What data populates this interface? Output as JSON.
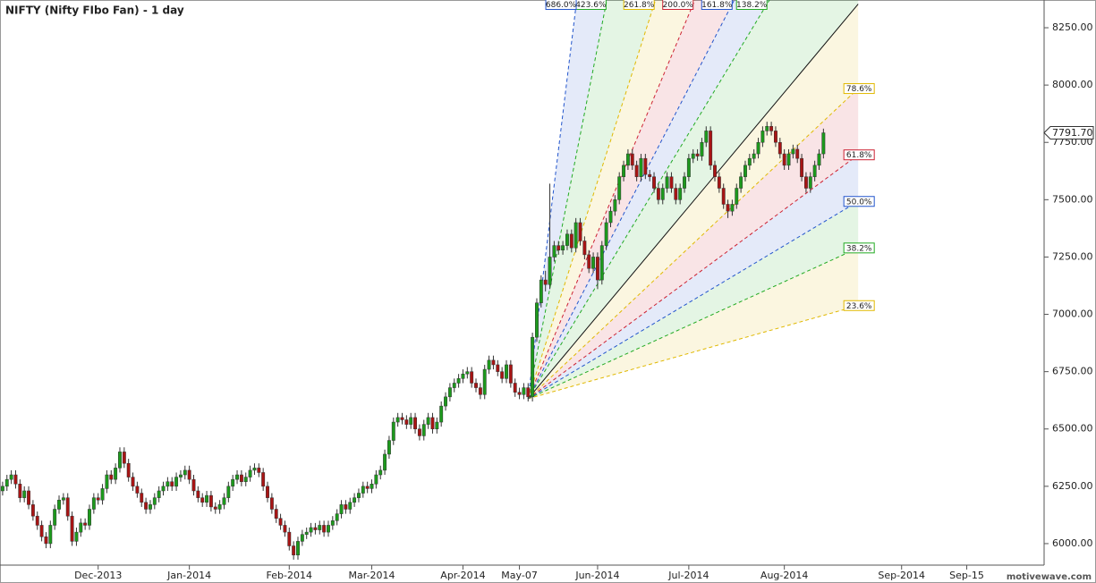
{
  "chart_data": {
    "type": "candlestick",
    "title": "NIFTY (Nifty FIbo Fan) - 1 day",
    "watermark": "motivewave.com",
    "last_price": 7791.7,
    "last_price_label": "7791.70",
    "up_color": "#1c9a1c",
    "down_color": "#a81414",
    "xlim": [
      -0.6,
      239.4
    ],
    "ylim": [
      5914,
      8371
    ],
    "xticks": [
      {
        "value": 22,
        "label": "Dec-2013"
      },
      {
        "value": 43,
        "label": "Jan-2014"
      },
      {
        "value": 66,
        "label": "Feb-2014"
      },
      {
        "value": 85,
        "label": "Mar-2014"
      },
      {
        "value": 106,
        "label": "Apr-2014"
      },
      {
        "value": 119,
        "label": "May-07"
      },
      {
        "value": 137,
        "label": "Jun-2014"
      },
      {
        "value": 158,
        "label": "Jul-2014"
      },
      {
        "value": 180,
        "label": "Aug-2014"
      },
      {
        "value": 207,
        "label": "Sep-2014"
      },
      {
        "value": 222,
        "label": "Sep-15"
      }
    ],
    "yticks": [
      {
        "value": 6000,
        "label": "6000.00"
      },
      {
        "value": 6250,
        "label": "6250.00"
      },
      {
        "value": 6500,
        "label": "6500.00"
      },
      {
        "value": 6750,
        "label": "6750.00"
      },
      {
        "value": 7000,
        "label": "7000.00"
      },
      {
        "value": 7250,
        "label": "7250.00"
      },
      {
        "value": 7500,
        "label": "7500.00"
      },
      {
        "value": 7750,
        "label": "7750.00"
      },
      {
        "value": 8000,
        "label": "8000.00"
      },
      {
        "value": 8250,
        "label": "8250.00"
      }
    ],
    "fan": {
      "origin_x": 121,
      "origin_price": 6632,
      "end_x": 197,
      "high_price": 8353,
      "levels": [
        {
          "value": 23.6,
          "label": "23.6%",
          "color": "#e0b800"
        },
        {
          "value": 38.2,
          "label": "38.2%",
          "color": "#22aa22"
        },
        {
          "value": 50,
          "label": "50.0%",
          "color": "#2255cc"
        },
        {
          "value": 61.8,
          "label": "61.8%",
          "color": "#cc2233"
        },
        {
          "value": 78.6,
          "label": "78.6%",
          "color": "#e0b800"
        },
        {
          "value": 100,
          "color": "#111111"
        },
        {
          "value": 138.2,
          "label": "138.2%",
          "color": "#22aa22"
        },
        {
          "value": 161.8,
          "label": "161.8%",
          "color": "#2255cc"
        },
        {
          "value": 200,
          "label": "200.0%",
          "color": "#cc2233"
        },
        {
          "value": 261.8,
          "label": "261.8%",
          "color": "#e0b800"
        },
        {
          "value": 423.6,
          "label": "423.6%",
          "color": "#22aa22"
        },
        {
          "value": 686,
          "label": "686.0%",
          "color": "#2255cc"
        }
      ]
    },
    "candles": [
      [
        6230,
        6270,
        6210,
        6250
      ],
      [
        6250,
        6300,
        6230,
        6280
      ],
      [
        6280,
        6320,
        6260,
        6300
      ],
      [
        6300,
        6320,
        6240,
        6260
      ],
      [
        6260,
        6280,
        6180,
        6200
      ],
      [
        6200,
        6250,
        6180,
        6230
      ],
      [
        6230,
        6250,
        6150,
        6170
      ],
      [
        6170,
        6190,
        6100,
        6120
      ],
      [
        6120,
        6140,
        6060,
        6080
      ],
      [
        6080,
        6100,
        6010,
        6030
      ],
      [
        6030,
        6050,
        5980,
        6000
      ],
      [
        6000,
        6100,
        5980,
        6080
      ],
      [
        6080,
        6170,
        6060,
        6150
      ],
      [
        6150,
        6210,
        6130,
        6190
      ],
      [
        6190,
        6220,
        6170,
        6200
      ],
      [
        6200,
        6220,
        6100,
        6120
      ],
      [
        6120,
        6140,
        5990,
        6010
      ],
      [
        6010,
        6070,
        5990,
        6050
      ],
      [
        6050,
        6110,
        6030,
        6090
      ],
      [
        6090,
        6110,
        6060,
        6080
      ],
      [
        6080,
        6170,
        6060,
        6150
      ],
      [
        6150,
        6220,
        6130,
        6200
      ],
      [
        6200,
        6220,
        6170,
        6190
      ],
      [
        6190,
        6260,
        6170,
        6240
      ],
      [
        6240,
        6320,
        6220,
        6300
      ],
      [
        6300,
        6320,
        6260,
        6280
      ],
      [
        6280,
        6350,
        6260,
        6330
      ],
      [
        6330,
        6420,
        6310,
        6400
      ],
      [
        6400,
        6420,
        6330,
        6350
      ],
      [
        6350,
        6370,
        6270,
        6290
      ],
      [
        6290,
        6310,
        6230,
        6250
      ],
      [
        6250,
        6270,
        6200,
        6220
      ],
      [
        6220,
        6240,
        6160,
        6180
      ],
      [
        6180,
        6200,
        6130,
        6150
      ],
      [
        6150,
        6190,
        6130,
        6170
      ],
      [
        6170,
        6220,
        6150,
        6200
      ],
      [
        6200,
        6250,
        6180,
        6230
      ],
      [
        6230,
        6270,
        6210,
        6250
      ],
      [
        6250,
        6290,
        6230,
        6270
      ],
      [
        6270,
        6290,
        6230,
        6250
      ],
      [
        6250,
        6310,
        6230,
        6290
      ],
      [
        6290,
        6320,
        6270,
        6300
      ],
      [
        6300,
        6340,
        6280,
        6320
      ],
      [
        6320,
        6340,
        6260,
        6280
      ],
      [
        6280,
        6300,
        6210,
        6230
      ],
      [
        6230,
        6250,
        6180,
        6200
      ],
      [
        6200,
        6220,
        6160,
        6180
      ],
      [
        6180,
        6230,
        6160,
        6210
      ],
      [
        6210,
        6230,
        6140,
        6160
      ],
      [
        6160,
        6180,
        6130,
        6150
      ],
      [
        6150,
        6190,
        6130,
        6170
      ],
      [
        6170,
        6220,
        6150,
        6200
      ],
      [
        6200,
        6270,
        6180,
        6250
      ],
      [
        6250,
        6300,
        6230,
        6280
      ],
      [
        6280,
        6320,
        6260,
        6300
      ],
      [
        6300,
        6320,
        6250,
        6270
      ],
      [
        6270,
        6310,
        6250,
        6290
      ],
      [
        6290,
        6340,
        6270,
        6320
      ],
      [
        6320,
        6350,
        6300,
        6330
      ],
      [
        6330,
        6350,
        6290,
        6310
      ],
      [
        6310,
        6330,
        6230,
        6250
      ],
      [
        6250,
        6270,
        6180,
        6200
      ],
      [
        6200,
        6220,
        6130,
        6150
      ],
      [
        6150,
        6170,
        6090,
        6110
      ],
      [
        6110,
        6130,
        6060,
        6080
      ],
      [
        6080,
        6100,
        6030,
        6050
      ],
      [
        6050,
        6070,
        5970,
        5990
      ],
      [
        5990,
        6010,
        5930,
        5950
      ],
      [
        5950,
        6030,
        5930,
        6010
      ],
      [
        6010,
        6060,
        5990,
        6040
      ],
      [
        6040,
        6070,
        6020,
        6050
      ],
      [
        6050,
        6090,
        6030,
        6070
      ],
      [
        6070,
        6090,
        6040,
        6060
      ],
      [
        6060,
        6100,
        6040,
        6080
      ],
      [
        6080,
        6100,
        6030,
        6050
      ],
      [
        6050,
        6100,
        6030,
        6080
      ],
      [
        6080,
        6120,
        6060,
        6100
      ],
      [
        6100,
        6150,
        6080,
        6130
      ],
      [
        6130,
        6190,
        6110,
        6170
      ],
      [
        6170,
        6190,
        6130,
        6150
      ],
      [
        6150,
        6200,
        6130,
        6180
      ],
      [
        6180,
        6220,
        6160,
        6200
      ],
      [
        6200,
        6240,
        6180,
        6220
      ],
      [
        6220,
        6270,
        6200,
        6250
      ],
      [
        6250,
        6270,
        6220,
        6240
      ],
      [
        6240,
        6280,
        6220,
        6260
      ],
      [
        6260,
        6320,
        6240,
        6300
      ],
      [
        6300,
        6340,
        6280,
        6320
      ],
      [
        6320,
        6410,
        6300,
        6390
      ],
      [
        6390,
        6470,
        6370,
        6450
      ],
      [
        6450,
        6550,
        6430,
        6530
      ],
      [
        6530,
        6570,
        6510,
        6550
      ],
      [
        6550,
        6570,
        6520,
        6540
      ],
      [
        6540,
        6560,
        6500,
        6520
      ],
      [
        6520,
        6570,
        6500,
        6550
      ],
      [
        6550,
        6570,
        6480,
        6500
      ],
      [
        6500,
        6520,
        6450,
        6470
      ],
      [
        6470,
        6540,
        6450,
        6520
      ],
      [
        6520,
        6570,
        6500,
        6550
      ],
      [
        6550,
        6570,
        6480,
        6500
      ],
      [
        6500,
        6550,
        6480,
        6530
      ],
      [
        6530,
        6620,
        6510,
        6600
      ],
      [
        6600,
        6660,
        6580,
        6640
      ],
      [
        6640,
        6700,
        6620,
        6680
      ],
      [
        6680,
        6720,
        6660,
        6700
      ],
      [
        6700,
        6740,
        6680,
        6720
      ],
      [
        6720,
        6760,
        6700,
        6740
      ],
      [
        6740,
        6770,
        6720,
        6750
      ],
      [
        6750,
        6770,
        6680,
        6700
      ],
      [
        6700,
        6720,
        6660,
        6680
      ],
      [
        6680,
        6700,
        6630,
        6650
      ],
      [
        6650,
        6780,
        6630,
        6760
      ],
      [
        6760,
        6820,
        6740,
        6800
      ],
      [
        6800,
        6820,
        6760,
        6780
      ],
      [
        6780,
        6800,
        6730,
        6750
      ],
      [
        6750,
        6770,
        6700,
        6720
      ],
      [
        6720,
        6800,
        6700,
        6780
      ],
      [
        6780,
        6800,
        6680,
        6700
      ],
      [
        6700,
        6720,
        6640,
        6660
      ],
      [
        6660,
        6680,
        6630,
        6650
      ],
      [
        6650,
        6700,
        6630,
        6680
      ],
      [
        6680,
        6700,
        6620,
        6640
      ],
      [
        6640,
        6920,
        6620,
        6900
      ],
      [
        6900,
        7070,
        6880,
        7050
      ],
      [
        7050,
        7170,
        7030,
        7150
      ],
      [
        7150,
        7190,
        7100,
        7130
      ],
      [
        7130,
        7570,
        7110,
        7250
      ],
      [
        7250,
        7320,
        7230,
        7300
      ],
      [
        7300,
        7320,
        7260,
        7280
      ],
      [
        7280,
        7320,
        7260,
        7300
      ],
      [
        7300,
        7370,
        7280,
        7350
      ],
      [
        7350,
        7370,
        7270,
        7290
      ],
      [
        7290,
        7420,
        7270,
        7400
      ],
      [
        7400,
        7420,
        7300,
        7320
      ],
      [
        7320,
        7340,
        7240,
        7260
      ],
      [
        7260,
        7280,
        7180,
        7200
      ],
      [
        7200,
        7270,
        7180,
        7250
      ],
      [
        7250,
        7270,
        7110,
        7150
      ],
      [
        7150,
        7320,
        7130,
        7300
      ],
      [
        7300,
        7420,
        7280,
        7400
      ],
      [
        7400,
        7470,
        7380,
        7450
      ],
      [
        7450,
        7520,
        7430,
        7500
      ],
      [
        7500,
        7620,
        7480,
        7600
      ],
      [
        7600,
        7670,
        7580,
        7650
      ],
      [
        7650,
        7720,
        7630,
        7700
      ],
      [
        7700,
        7720,
        7630,
        7650
      ],
      [
        7650,
        7670,
        7580,
        7600
      ],
      [
        7600,
        7700,
        7580,
        7680
      ],
      [
        7680,
        7700,
        7590,
        7610
      ],
      [
        7610,
        7630,
        7580,
        7600
      ],
      [
        7600,
        7620,
        7530,
        7550
      ],
      [
        7550,
        7570,
        7480,
        7500
      ],
      [
        7500,
        7570,
        7480,
        7550
      ],
      [
        7550,
        7620,
        7530,
        7600
      ],
      [
        7600,
        7620,
        7530,
        7550
      ],
      [
        7550,
        7570,
        7480,
        7500
      ],
      [
        7500,
        7570,
        7480,
        7550
      ],
      [
        7550,
        7620,
        7530,
        7600
      ],
      [
        7600,
        7700,
        7580,
        7680
      ],
      [
        7680,
        7720,
        7660,
        7700
      ],
      [
        7700,
        7720,
        7670,
        7690
      ],
      [
        7690,
        7770,
        7670,
        7750
      ],
      [
        7750,
        7820,
        7730,
        7800
      ],
      [
        7800,
        7820,
        7630,
        7650
      ],
      [
        7650,
        7670,
        7580,
        7600
      ],
      [
        7600,
        7620,
        7530,
        7550
      ],
      [
        7550,
        7570,
        7460,
        7480
      ],
      [
        7480,
        7500,
        7420,
        7450
      ],
      [
        7450,
        7500,
        7430,
        7480
      ],
      [
        7480,
        7570,
        7460,
        7550
      ],
      [
        7550,
        7620,
        7530,
        7600
      ],
      [
        7600,
        7670,
        7580,
        7650
      ],
      [
        7650,
        7700,
        7630,
        7680
      ],
      [
        7680,
        7720,
        7660,
        7700
      ],
      [
        7700,
        7770,
        7680,
        7750
      ],
      [
        7750,
        7820,
        7730,
        7800
      ],
      [
        7800,
        7840,
        7780,
        7820
      ],
      [
        7820,
        7840,
        7780,
        7800
      ],
      [
        7800,
        7820,
        7730,
        7750
      ],
      [
        7750,
        7770,
        7680,
        7700
      ],
      [
        7700,
        7720,
        7630,
        7650
      ],
      [
        7650,
        7720,
        7630,
        7700
      ],
      [
        7700,
        7740,
        7680,
        7720
      ],
      [
        7720,
        7740,
        7660,
        7680
      ],
      [
        7680,
        7700,
        7580,
        7600
      ],
      [
        7600,
        7620,
        7530,
        7550
      ],
      [
        7550,
        7620,
        7530,
        7600
      ],
      [
        7600,
        7670,
        7580,
        7650
      ],
      [
        7650,
        7720,
        7630,
        7700
      ],
      [
        7700,
        7810,
        7680,
        7791.7
      ]
    ]
  }
}
